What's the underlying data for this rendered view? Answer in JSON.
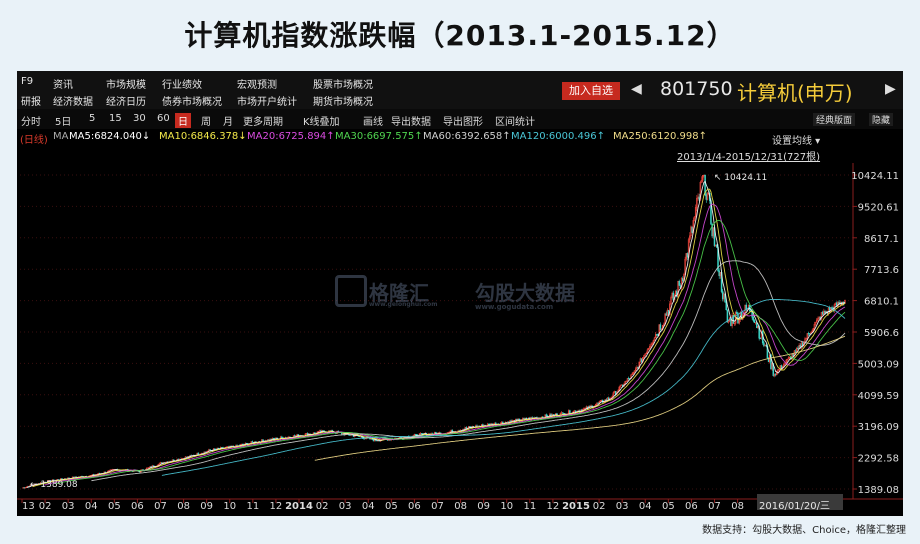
{
  "title": "计算机指数涨跌幅（2013.1-2015.12）",
  "source": "数据支持：勾股大数据、Choice，格隆汇整理",
  "menu": {
    "row1": [
      "F9",
      "资讯",
      "市场规模",
      "行业绩效",
      "宏观预测",
      "股票市场概况"
    ],
    "row2": [
      "研报",
      "经济数据",
      "经济日历",
      "债券市场概况",
      "市场开户统计",
      "期货市场概况"
    ],
    "add_button": "加入自选",
    "index_code": "801750",
    "index_name": "计算机(申万)"
  },
  "toolbar": {
    "items": [
      "分时",
      "5日",
      "5",
      "15",
      "30",
      "60",
      "日",
      "周",
      "月",
      "更多周期",
      "K线叠加",
      "画线",
      "导出数据",
      "导出图形",
      "区间统计"
    ],
    "selected": "日",
    "right": [
      "经典版面",
      "隐藏"
    ]
  },
  "ma_legend": {
    "prefix": "(日线)",
    "ma_label": "MA",
    "items": [
      {
        "label": "MA5:6824.040↓",
        "color": "#ffffff"
      },
      {
        "label": "MA10:6846.378↓",
        "color": "#f2e84a"
      },
      {
        "label": "MA20:6725.894↑",
        "color": "#d94ce0"
      },
      {
        "label": "MA30:6697.575↑",
        "color": "#4fd44f"
      },
      {
        "label": "MA60:6392.658↑",
        "color": "#cfcfcf"
      },
      {
        "label": "MA120:6000.496↑",
        "color": "#4ac6d6"
      },
      {
        "label": "MA250:6120.998↑",
        "color": "#f0dc8a"
      }
    ]
  },
  "settings_button": "设置均线",
  "date_range": "2013/1/4-2015/12/31(727根)",
  "watermark": {
    "brand": "格隆汇",
    "brand_sub": "www.gelonghui.com",
    "data_brand": "勾股大数据",
    "data_sub": "www.gogudata.com"
  },
  "chart_data": {
    "type": "candlestick",
    "y_ticks": [
      10424.11,
      9520.61,
      8617.1,
      7713.6,
      6810.1,
      5906.6,
      5003.09,
      4099.59,
      3196.09,
      2292.58,
      1389.08
    ],
    "ylim": [
      1389.08,
      10424.11
    ],
    "x_ticks": [
      "13",
      "02",
      "03",
      "04",
      "05",
      "06",
      "07",
      "08",
      "09",
      "10",
      "11",
      "12",
      "2014",
      "02",
      "03",
      "04",
      "05",
      "06",
      "07",
      "08",
      "09",
      "10",
      "11",
      "12",
      "2015",
      "02",
      "03",
      "04",
      "05",
      "06",
      "07",
      "08",
      "0",
      "2016/01/20/三"
    ],
    "annotations": [
      {
        "label": "10424.11",
        "x": "2015-06",
        "value": 10424.11
      },
      {
        "label": "1389.08",
        "x": "2013-01",
        "value": 1389.08
      }
    ],
    "close_series": {
      "name": "计算机(申万)",
      "points": [
        [
          "2013-01",
          1420
        ],
        [
          "2013-02",
          1600
        ],
        [
          "2013-03",
          1700
        ],
        [
          "2013-04",
          1780
        ],
        [
          "2013-05",
          1950
        ],
        [
          "2013-06",
          1900
        ],
        [
          "2013-07",
          2150
        ],
        [
          "2013-08",
          2300
        ],
        [
          "2013-09",
          2500
        ],
        [
          "2013-10",
          2600
        ],
        [
          "2013-11",
          2750
        ],
        [
          "2013-12",
          2850
        ],
        [
          "2014-01",
          2950
        ],
        [
          "2014-02",
          3050
        ],
        [
          "2014-03",
          2950
        ],
        [
          "2014-04",
          2800
        ],
        [
          "2014-05",
          2850
        ],
        [
          "2014-06",
          2950
        ],
        [
          "2014-07",
          3000
        ],
        [
          "2014-08",
          3150
        ],
        [
          "2014-09",
          3250
        ],
        [
          "2014-10",
          3350
        ],
        [
          "2014-11",
          3450
        ],
        [
          "2014-12",
          3550
        ],
        [
          "2015-01",
          3700
        ],
        [
          "2015-02",
          4000
        ],
        [
          "2015-03",
          4700
        ],
        [
          "2015-04",
          5900
        ],
        [
          "2015-05",
          7300
        ],
        [
          "2015-06",
          10424.11
        ],
        [
          "2015-07",
          6200
        ],
        [
          "2015-08",
          6600
        ],
        [
          "2015-09",
          4700
        ],
        [
          "2015-10",
          5400
        ],
        [
          "2015-11",
          6400
        ],
        [
          "2015-12",
          6824.04
        ]
      ]
    }
  }
}
